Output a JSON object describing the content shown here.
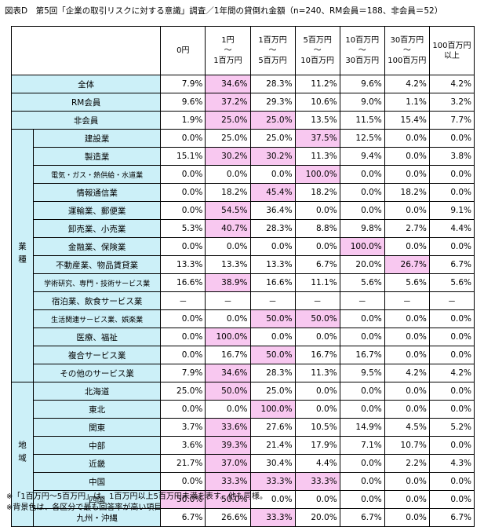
{
  "title": "図表D　第5回「企業の取引リスクに対する意識」調査／1年間の貸倒れ金額（n=240、RM会員＝188、非会員＝52）",
  "table": {
    "header": [
      [
        "0円"
      ],
      [
        "1円",
        "～",
        "1百万円"
      ],
      [
        "1百万円",
        "～",
        "5百万円"
      ],
      [
        "5百万円",
        "～",
        "10百万円"
      ],
      [
        "10百万円",
        "～",
        "30百万円"
      ],
      [
        "30百万円",
        "～",
        "100百万円"
      ],
      [
        "100百万円",
        "以上"
      ]
    ],
    "highlight_color": "#f8c8f0",
    "label_color": "#ccf0f8",
    "groups": [
      {
        "name": null,
        "rows": [
          {
            "label": "全体",
            "cells": [
              "7.9%",
              "34.6%",
              "28.3%",
              "11.2%",
              "9.6%",
              "4.2%",
              "4.2%"
            ],
            "highlight": [
              1
            ]
          },
          {
            "label": "RM会員",
            "cells": [
              "9.6%",
              "37.2%",
              "29.3%",
              "10.6%",
              "9.0%",
              "1.1%",
              "3.2%"
            ],
            "highlight": [
              1
            ]
          },
          {
            "label": "非会員",
            "cells": [
              "1.9%",
              "25.0%",
              "25.0%",
              "13.5%",
              "11.5%",
              "15.4%",
              "7.7%"
            ],
            "highlight": [
              1,
              2
            ]
          }
        ]
      },
      {
        "name": "業種",
        "rows": [
          {
            "label": "建設業",
            "cells": [
              "0.0%",
              "25.0%",
              "25.0%",
              "37.5%",
              "12.5%",
              "0.0%",
              "0.0%"
            ],
            "highlight": [
              3
            ]
          },
          {
            "label": "製造業",
            "cells": [
              "15.1%",
              "30.2%",
              "30.2%",
              "11.3%",
              "9.4%",
              "0.0%",
              "3.8%"
            ],
            "highlight": [
              1,
              2
            ]
          },
          {
            "label": "電気・ガス・熱供給・水道業",
            "cells": [
              "0.0%",
              "0.0%",
              "0.0%",
              "100.0%",
              "0.0%",
              "0.0%",
              "0.0%"
            ],
            "highlight": [
              3
            ]
          },
          {
            "label": "情報通信業",
            "cells": [
              "0.0%",
              "18.2%",
              "45.4%",
              "18.2%",
              "0.0%",
              "18.2%",
              "0.0%"
            ],
            "highlight": [
              2
            ]
          },
          {
            "label": "運輸業、郵便業",
            "cells": [
              "0.0%",
              "54.5%",
              "36.4%",
              "0.0%",
              "0.0%",
              "0.0%",
              "9.1%"
            ],
            "highlight": [
              1
            ]
          },
          {
            "label": "卸売業、小売業",
            "cells": [
              "5.3%",
              "40.7%",
              "28.3%",
              "8.8%",
              "9.8%",
              "2.7%",
              "4.4%"
            ],
            "highlight": [
              1
            ]
          },
          {
            "label": "金融業、保険業",
            "cells": [
              "0.0%",
              "0.0%",
              "0.0%",
              "0.0%",
              "100.0%",
              "0.0%",
              "0.0%"
            ],
            "highlight": [
              4
            ]
          },
          {
            "label": "不動産業、物品賃貸業",
            "cells": [
              "13.3%",
              "13.3%",
              "13.3%",
              "6.7%",
              "20.0%",
              "26.7%",
              "6.7%"
            ],
            "highlight": [
              5
            ]
          },
          {
            "label": "学術研究、専門・技術サービス業",
            "cells": [
              "16.6%",
              "38.9%",
              "16.6%",
              "11.1%",
              "5.6%",
              "5.6%",
              "5.6%"
            ],
            "highlight": [
              1
            ]
          },
          {
            "label": "宿泊業、飲食サービス業",
            "cells": [
              "－",
              "－",
              "－",
              "－",
              "－",
              "－",
              "－"
            ],
            "highlight": []
          },
          {
            "label": "生活関連サービス業、娯楽業",
            "cells": [
              "0.0%",
              "0.0%",
              "50.0%",
              "50.0%",
              "0.0%",
              "0.0%",
              "0.0%"
            ],
            "highlight": [
              2,
              3
            ]
          },
          {
            "label": "医療、福祉",
            "cells": [
              "0.0%",
              "100.0%",
              "0.0%",
              "0.0%",
              "0.0%",
              "0.0%",
              "0.0%"
            ],
            "highlight": [
              1
            ]
          },
          {
            "label": "複合サービス業",
            "cells": [
              "0.0%",
              "16.7%",
              "50.0%",
              "16.7%",
              "16.7%",
              "0.0%",
              "0.0%"
            ],
            "highlight": [
              2
            ]
          },
          {
            "label": "その他のサービス業",
            "cells": [
              "7.9%",
              "34.6%",
              "28.3%",
              "11.3%",
              "9.5%",
              "4.2%",
              "4.2%"
            ],
            "highlight": [
              1
            ]
          }
        ]
      },
      {
        "name": "地域",
        "rows": [
          {
            "label": "北海道",
            "cells": [
              "25.0%",
              "50.0%",
              "25.0%",
              "0.0%",
              "0.0%",
              "0.0%",
              "0.0%"
            ],
            "highlight": [
              1
            ]
          },
          {
            "label": "東北",
            "cells": [
              "0.0%",
              "0.0%",
              "100.0%",
              "0.0%",
              "0.0%",
              "0.0%",
              "0.0%"
            ],
            "highlight": [
              2
            ]
          },
          {
            "label": "関東",
            "cells": [
              "3.7%",
              "33.6%",
              "27.6%",
              "10.5%",
              "14.9%",
              "4.5%",
              "5.2%"
            ],
            "highlight": [
              1
            ]
          },
          {
            "label": "中部",
            "cells": [
              "3.6%",
              "39.3%",
              "21.4%",
              "17.9%",
              "7.1%",
              "10.7%",
              "0.0%"
            ],
            "highlight": [
              1
            ]
          },
          {
            "label": "近畿",
            "cells": [
              "21.7%",
              "37.0%",
              "30.4%",
              "4.4%",
              "0.0%",
              "2.2%",
              "4.3%"
            ],
            "highlight": [
              1
            ]
          },
          {
            "label": "中国",
            "cells": [
              "0.0%",
              "33.3%",
              "33.3%",
              "33.3%",
              "0.0%",
              "0.0%",
              "0.0%"
            ],
            "highlight": [
              1,
              2,
              3
            ]
          },
          {
            "label": "四国",
            "cells": [
              "50.0%",
              "50.0%",
              "0.0%",
              "0.0%",
              "0.0%",
              "0.0%",
              "0.0%"
            ],
            "highlight": [
              0,
              1
            ]
          },
          {
            "label": "九州・沖縄",
            "cells": [
              "6.7%",
              "26.6%",
              "33.3%",
              "20.0%",
              "6.7%",
              "0.0%",
              "6.7%"
            ],
            "highlight": [
              2
            ]
          }
        ]
      }
    ]
  },
  "notes": [
    "※「1百万円～5百万円」は、1百万円以上5百万円未満を表す。他も同様。",
    "※背景色は、各区分で最も回答率が高い項目"
  ]
}
